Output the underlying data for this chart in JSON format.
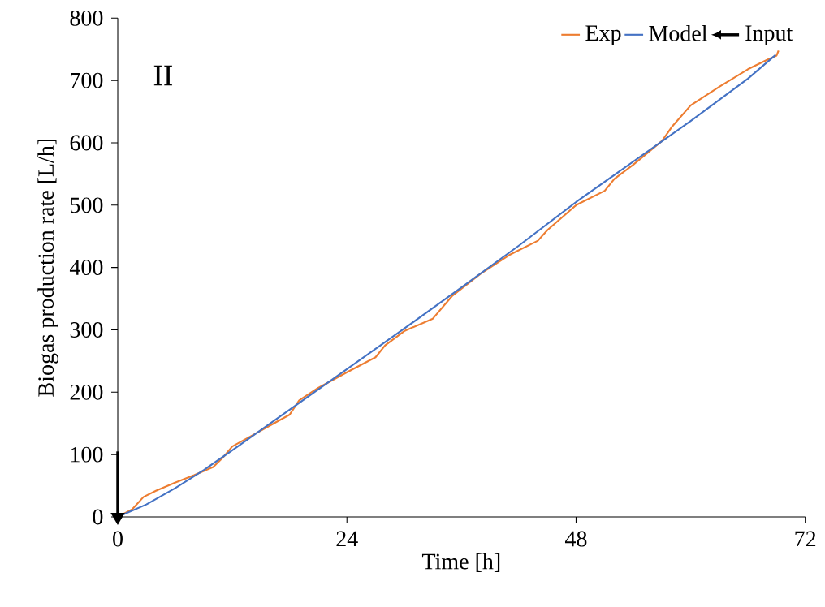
{
  "chart_data": {
    "type": "line",
    "xlabel": "Time [h]",
    "ylabel": "Biogas production rate [L/h]",
    "annotations": [
      "II"
    ],
    "xlim": [
      0,
      72
    ],
    "xticks": [
      0,
      24,
      48,
      72
    ],
    "ylim": [
      0,
      800
    ],
    "yticks": [
      0,
      100,
      200,
      300,
      400,
      500,
      600,
      700,
      800
    ],
    "legend": "top right",
    "grid": false,
    "series": [
      {
        "name": "Exp",
        "color": "#ed7d31",
        "x": [
          0,
          1.5,
          2.7,
          4,
          6,
          8,
          10,
          11,
          12,
          14,
          16,
          18,
          19,
          21,
          24,
          27,
          28,
          30,
          33,
          35,
          38,
          41,
          44,
          45,
          48,
          51,
          52,
          54,
          57,
          58,
          60,
          63,
          66,
          68,
          69,
          69.2
        ],
        "values": [
          0,
          12,
          32,
          42,
          55,
          67,
          80,
          95,
          113,
          130,
          147,
          164,
          187,
          207,
          232,
          256,
          275,
          298,
          318,
          354,
          390,
          420,
          443,
          460,
          500,
          523,
          542,
          565,
          603,
          625,
          660,
          690,
          718,
          733,
          740,
          748
        ]
      },
      {
        "name": "Model",
        "color": "#4472c4",
        "x": [
          0,
          3,
          6,
          9,
          12,
          18,
          24,
          30,
          36,
          42,
          48,
          54,
          60,
          66,
          68.9
        ],
        "values": [
          0,
          20,
          46,
          75,
          107,
          172,
          237,
          302,
          368,
          435,
          505,
          570,
          635,
          703,
          741
        ]
      },
      {
        "name": "Input",
        "color": "#000000",
        "x": [
          0,
          0
        ],
        "values": [
          105,
          0
        ]
      }
    ]
  }
}
